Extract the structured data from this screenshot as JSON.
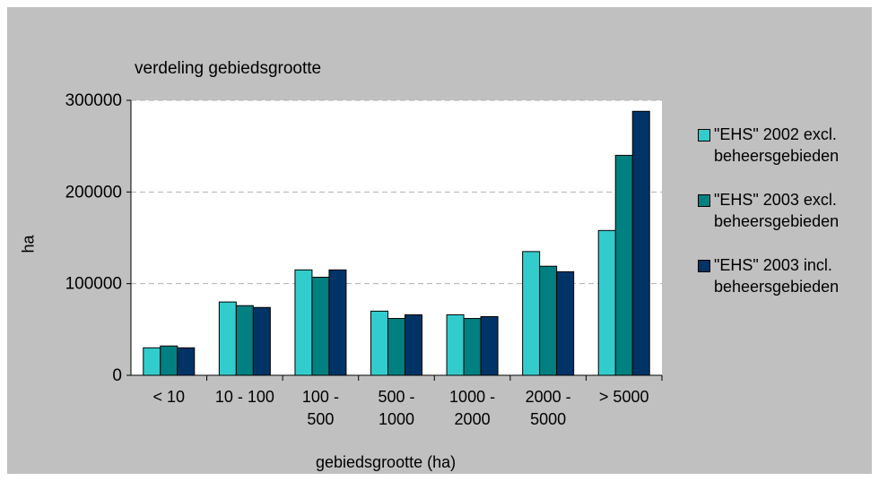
{
  "chart_data": {
    "type": "bar",
    "title": "verdeling gebiedsgrootte",
    "xlabel": "gebiedsgrootte (ha)",
    "ylabel": "ha",
    "ylim": [
      0,
      300000
    ],
    "yticks": [
      "0",
      "100000",
      "200000",
      "300000"
    ],
    "categories": [
      "< 10",
      "10 - 100",
      "100 -\n500",
      "500 -\n1000",
      "1000 -\n2000",
      "2000 -\n5000",
      "> 5000"
    ],
    "series": [
      {
        "name": "\"EHS\" 2002 excl.\nbeheersgebieden",
        "color": "#33cccc",
        "values": [
          30000,
          80000,
          115000,
          70000,
          66000,
          135000,
          158000
        ]
      },
      {
        "name": "\"EHS\" 2003 excl.\nbeheersgebieden",
        "color": "#008080",
        "values": [
          32000,
          76000,
          107000,
          62000,
          62000,
          119000,
          240000
        ]
      },
      {
        "name": "\"EHS\" 2003 incl.\nbeheersgebieden",
        "color": "#003366",
        "values": [
          30000,
          74000,
          115000,
          66000,
          64000,
          113000,
          288000
        ]
      }
    ],
    "grid": true,
    "legend_position": "right"
  }
}
